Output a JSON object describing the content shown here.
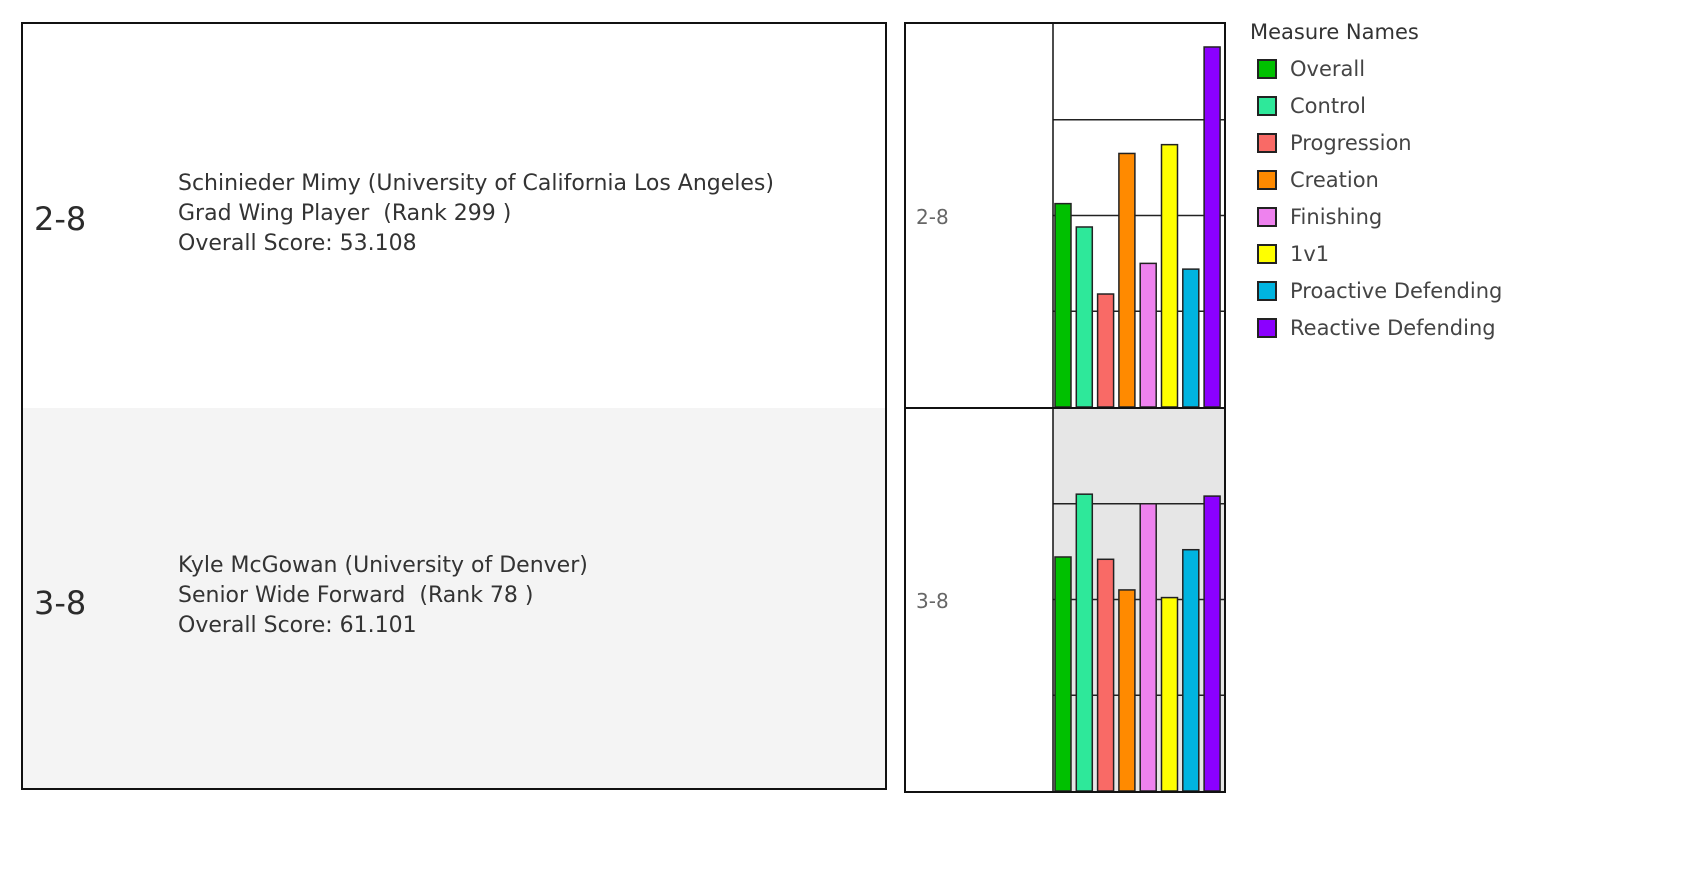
{
  "rows": [
    {
      "label": "2-8",
      "line1": "Schinieder Mimy (University of California Los Angeles)",
      "line2": "Grad Wing Player  (Rank 299 )",
      "line3": "Overall Score: 53.108"
    },
    {
      "label": "3-8",
      "line1": "Kyle McGowan (University of Denver)",
      "line2": "Senior Wide Forward  (Rank 78 )",
      "line3": "Overall Score: 61.101"
    }
  ],
  "legend": {
    "title": "Measure Names",
    "items": [
      {
        "label": "Overall",
        "color": "#00c000"
      },
      {
        "label": "Control",
        "color": "#2ee89a"
      },
      {
        "label": "Progression",
        "color": "#f96a66"
      },
      {
        "label": "Creation",
        "color": "#ff8a00"
      },
      {
        "label": "Finishing",
        "color": "#ee82ee"
      },
      {
        "label": "1v1",
        "color": "#ffff00"
      },
      {
        "label": "Proactive Defending",
        "color": "#00b4e0"
      },
      {
        "label": "Reactive Defending",
        "color": "#8b00ff"
      }
    ]
  },
  "chart_data": {
    "type": "bar",
    "categories": [
      "Overall",
      "Control",
      "Progression",
      "Creation",
      "Finishing",
      "1v1",
      "Proactive Defending",
      "Reactive Defending"
    ],
    "ylim": [
      0,
      100
    ],
    "grid": true,
    "legend_position": "right",
    "series": [
      {
        "name": "2-8",
        "values": [
          53.1,
          47,
          29.5,
          66.2,
          37.5,
          68.5,
          36,
          94
        ]
      },
      {
        "name": "3-8",
        "values": [
          61.1,
          77.5,
          60.5,
          52.5,
          75,
          50.5,
          63,
          77
        ]
      }
    ]
  }
}
